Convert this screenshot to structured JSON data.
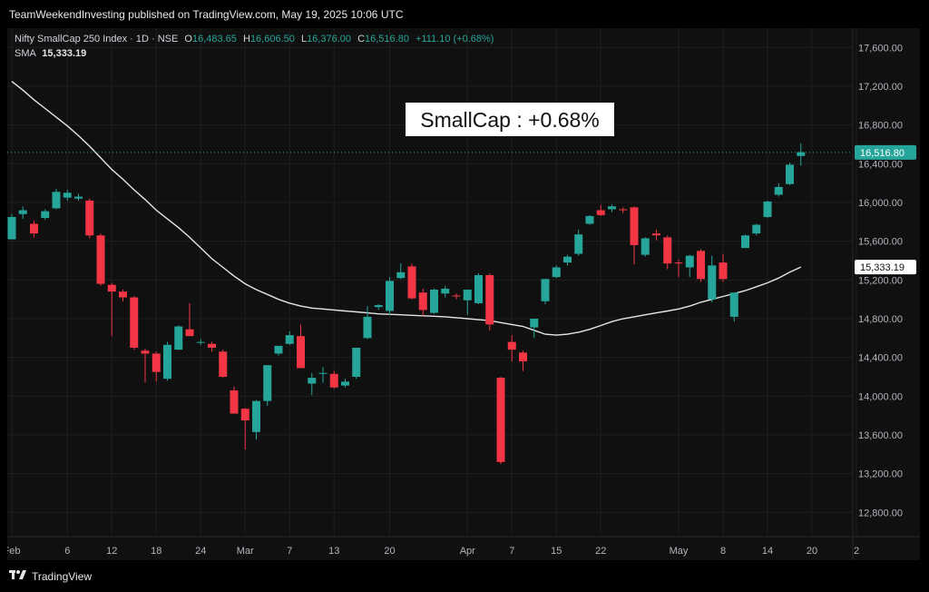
{
  "header": {
    "text": "TeamWeekendInvesting published on TradingView.com, May 19, 2025 10:06 UTC"
  },
  "legend": {
    "symbol": "Nifty SmallCap 250 Index · 1D · NSE",
    "open_label": "O",
    "open": "16,483.65",
    "high_label": "H",
    "high": "16,606.50",
    "low_label": "L",
    "low": "16,376.00",
    "close_label": "C",
    "close": "16,516.80",
    "change": "+111.10 (+0.68%)",
    "sma_label": "SMA",
    "sma_value": "15,333.19"
  },
  "annotation": "SmallCap : +0.68%",
  "footer": {
    "brand": "TradingView",
    "logo": "tradingview-logo-icon"
  },
  "colors": {
    "up": "#26a69a",
    "down": "#f23645",
    "sma": "#e6e6e6",
    "background": "#101010",
    "grid": "#1e1e1e",
    "axis_text": "#b2b5be"
  },
  "chart_data": {
    "type": "candlestick",
    "title": "Nifty SmallCap 250 Index · 1D · NSE",
    "ylim": [
      12550,
      17800
    ],
    "y_ticks": [
      12800,
      13200,
      13600,
      14000,
      14400,
      14800,
      15200,
      15600,
      16000,
      16400,
      16800,
      17200,
      17600
    ],
    "y_tick_labels": [
      "12,800.00",
      "13,200.00",
      "13,600.00",
      "14,000.00",
      "14,400.00",
      "14,800.00",
      "15,200.00",
      "15,600.00",
      "16,000.00",
      "16,400.00",
      "16,800.00",
      "17,200.00",
      "17,600.00"
    ],
    "x_tick_labels": [
      {
        "label": "Feb",
        "index": 0
      },
      {
        "label": "6",
        "index": 5
      },
      {
        "label": "12",
        "index": 9
      },
      {
        "label": "18",
        "index": 13
      },
      {
        "label": "24",
        "index": 17
      },
      {
        "label": "Mar",
        "index": 21
      },
      {
        "label": "7",
        "index": 25
      },
      {
        "label": "13",
        "index": 29
      },
      {
        "label": "20",
        "index": 34
      },
      {
        "label": "Apr",
        "index": 41
      },
      {
        "label": "7",
        "index": 45
      },
      {
        "label": "15",
        "index": 49
      },
      {
        "label": "22",
        "index": 53
      },
      {
        "label": "May",
        "index": 60
      },
      {
        "label": "8",
        "index": 64
      },
      {
        "label": "14",
        "index": 68
      },
      {
        "label": "20",
        "index": 72
      },
      {
        "label": "2",
        "index": 76
      }
    ],
    "last_price": 16516.8,
    "last_price_label": "16,516.80",
    "sma_last": 15333.19,
    "sma_last_label": "15,333.19",
    "ohlc": [
      [
        15620,
        15880,
        15620,
        15850
      ],
      [
        15880,
        15960,
        15830,
        15920
      ],
      [
        15780,
        15810,
        15640,
        15680
      ],
      [
        15840,
        15930,
        15820,
        15910
      ],
      [
        15940,
        16140,
        15930,
        16110
      ],
      [
        16050,
        16130,
        16020,
        16100
      ],
      [
        16040,
        16090,
        16020,
        16060
      ],
      [
        16020,
        16040,
        15630,
        15660
      ],
      [
        15660,
        15680,
        15140,
        15160
      ],
      [
        15150,
        15170,
        14620,
        15080
      ],
      [
        15080,
        15100,
        14980,
        15020
      ],
      [
        15020,
        15030,
        14480,
        14500
      ],
      [
        14470,
        14490,
        14140,
        14440
      ],
      [
        14440,
        14460,
        14150,
        14250
      ],
      [
        14180,
        14560,
        14160,
        14530
      ],
      [
        14480,
        14730,
        14480,
        14720
      ],
      [
        14690,
        14960,
        14630,
        14620
      ],
      [
        14560,
        14590,
        14530,
        14560
      ],
      [
        14540,
        14560,
        14460,
        14500
      ],
      [
        14460,
        14480,
        14190,
        14200
      ],
      [
        14060,
        14100,
        13820,
        13820
      ],
      [
        13870,
        13880,
        13450,
        13750
      ],
      [
        13630,
        13960,
        13550,
        13950
      ],
      [
        13950,
        14320,
        13900,
        14320
      ],
      [
        14440,
        14520,
        14420,
        14520
      ],
      [
        14540,
        14670,
        14530,
        14630
      ],
      [
        14620,
        14740,
        14290,
        14290
      ],
      [
        14130,
        14240,
        14010,
        14190
      ],
      [
        14230,
        14300,
        14140,
        14240
      ],
      [
        14230,
        14260,
        14080,
        14090
      ],
      [
        14110,
        14180,
        14090,
        14150
      ],
      [
        14200,
        14500,
        14180,
        14500
      ],
      [
        14600,
        14930,
        14590,
        14820
      ],
      [
        14920,
        14950,
        14890,
        14940
      ],
      [
        14880,
        15230,
        14840,
        15190
      ],
      [
        15220,
        15370,
        15210,
        15280
      ],
      [
        15340,
        15370,
        15000,
        15010
      ],
      [
        15070,
        15110,
        14830,
        14890
      ],
      [
        14860,
        15110,
        14850,
        15100
      ],
      [
        15060,
        15140,
        15020,
        15110
      ],
      [
        15040,
        15060,
        15000,
        15030
      ],
      [
        14990,
        15100,
        14840,
        15100
      ],
      [
        14960,
        15270,
        14950,
        15250
      ],
      [
        15250,
        15270,
        14680,
        14740
      ],
      [
        14190,
        14200,
        13300,
        13320
      ],
      [
        14560,
        14630,
        14360,
        14480
      ],
      [
        14450,
        14470,
        14260,
        14360
      ],
      [
        14710,
        14800,
        14600,
        14800
      ],
      [
        14980,
        15210,
        14950,
        15210
      ],
      [
        15230,
        15350,
        15220,
        15330
      ],
      [
        15380,
        15460,
        15350,
        15440
      ],
      [
        15470,
        15720,
        15450,
        15670
      ],
      [
        15780,
        15870,
        15770,
        15860
      ],
      [
        15920,
        15970,
        15860,
        15870
      ],
      [
        15930,
        15980,
        15900,
        15960
      ],
      [
        15930,
        15950,
        15890,
        15920
      ],
      [
        15950,
        15960,
        15360,
        15560
      ],
      [
        15460,
        15640,
        15440,
        15630
      ],
      [
        15680,
        15720,
        15610,
        15660
      ],
      [
        15640,
        15660,
        15310,
        15370
      ],
      [
        15380,
        15410,
        15230,
        15370
      ],
      [
        15330,
        15460,
        15230,
        15450
      ],
      [
        15500,
        15520,
        15180,
        15210
      ],
      [
        15000,
        15450,
        14970,
        15350
      ],
      [
        15380,
        15470,
        15180,
        15210
      ],
      [
        14820,
        15060,
        14770,
        15070
      ],
      [
        15530,
        15670,
        15540,
        15660
      ],
      [
        15680,
        15780,
        15660,
        15770
      ],
      [
        15850,
        16020,
        15840,
        16010
      ],
      [
        16080,
        16200,
        16060,
        16160
      ],
      [
        16190,
        16410,
        16180,
        16390
      ],
      [
        16480,
        16610,
        16380,
        16520
      ]
    ],
    "sma": [
      17250,
      17160,
      17060,
      16970,
      16880,
      16790,
      16690,
      16580,
      16460,
      16340,
      16240,
      16130,
      16030,
      15920,
      15830,
      15740,
      15640,
      15530,
      15420,
      15330,
      15240,
      15160,
      15100,
      15050,
      15000,
      14960,
      14930,
      14910,
      14900,
      14890,
      14880,
      14870,
      14860,
      14850,
      14845,
      14840,
      14835,
      14830,
      14825,
      14820,
      14810,
      14800,
      14790,
      14780,
      14760,
      14740,
      14720,
      14680,
      14640,
      14630,
      14640,
      14660,
      14690,
      14730,
      14770,
      14800,
      14820,
      14840,
      14860,
      14880,
      14900,
      14930,
      14970,
      15000,
      15030,
      15060,
      15090,
      15130,
      15170,
      15220,
      15280,
      15333.19
    ]
  }
}
